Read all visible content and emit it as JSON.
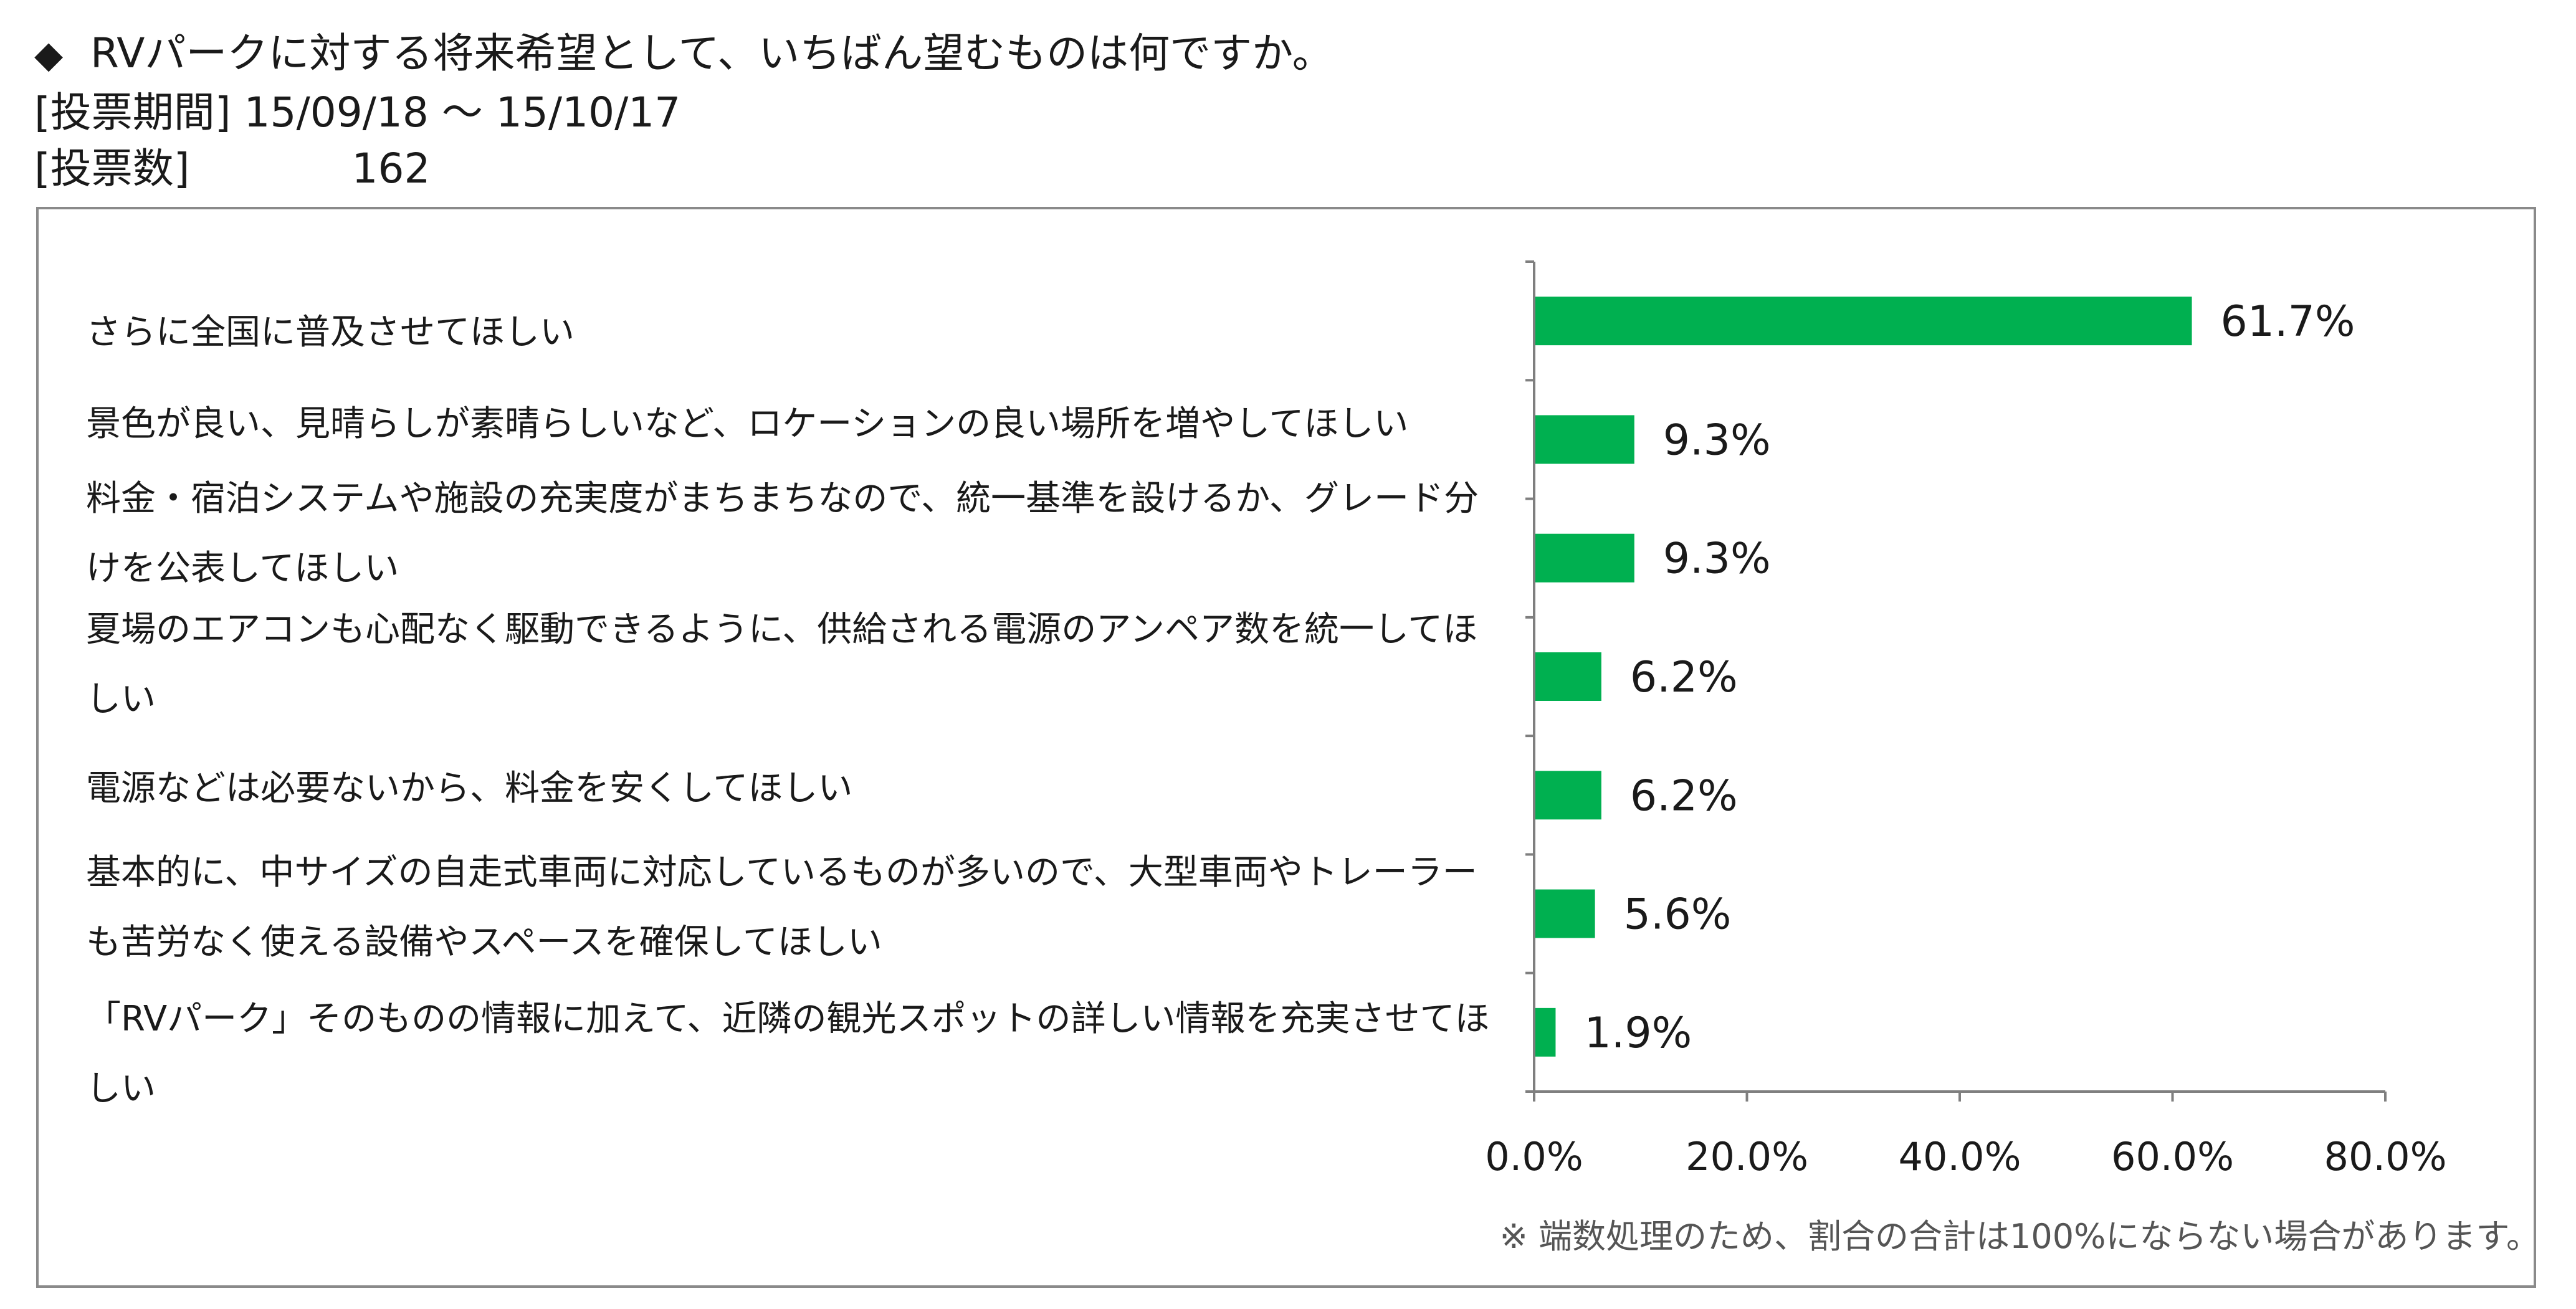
{
  "header": {
    "title": "RVパークに対する将来希望として、いちばん望むものは何ですか。",
    "period_label": "[投票期間]",
    "period_value": "15/09/18 〜 15/10/17",
    "count_label": "[投票数]",
    "count_value": "162"
  },
  "footnote": "※ 端数処理のため、割合の合計は100%にならない場合があります。",
  "chart_data": {
    "type": "bar",
    "orientation": "horizontal",
    "categories": [
      "さらに全国に普及させてほしい",
      "景色が良い、見晴らしが素晴らしいなど、ロケーションの良い場所を増やしてほしい",
      "料金・宿泊システムや施設の充実度がまちまちなので、統一基準を設けるか、グレード分けを公表してほしい",
      "夏場のエアコンも心配なく駆動できるように、供給される電源のアンペア数を統一してほしい",
      "電源などは必要ないから、料金を安くしてほしい",
      "基本的に、中サイズの自走式車両に対応しているものが多いので、大型車両やトレーラーも苦労なく使える設備やスペースを確保してほしい",
      "「RVパーク」そのものの情報に加えて、近隣の観光スポットの詳しい情報を充実させてほしい"
    ],
    "values": [
      61.7,
      9.3,
      9.3,
      6.2,
      6.2,
      5.6,
      1.9
    ],
    "value_labels": [
      "61.7%",
      "9.3%",
      "9.3%",
      "6.2%",
      "6.2%",
      "5.6%",
      "1.9%"
    ],
    "x_ticks": [
      "0.0%",
      "20.0%",
      "40.0%",
      "60.0%",
      "80.0%"
    ],
    "xlim": [
      0,
      80
    ],
    "bar_color": "#00b050",
    "axis_color": "#7f7f7f",
    "grid": false
  }
}
